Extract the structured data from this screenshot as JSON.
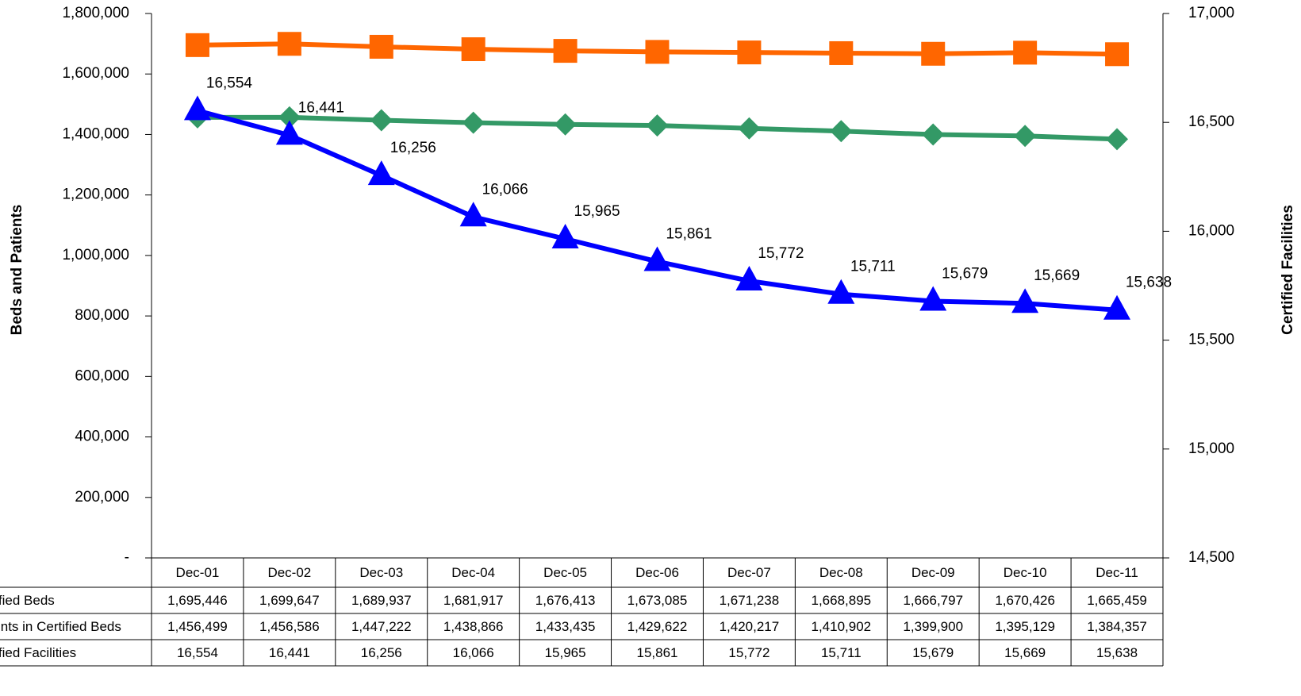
{
  "chart_data": {
    "type": "line",
    "y_label": "Beds and Patients",
    "y2_label": "Certified Facilities",
    "categories": [
      "Dec-01",
      "Dec-02",
      "Dec-03",
      "Dec-04",
      "Dec-05",
      "Dec-06",
      "Dec-07",
      "Dec-08",
      "Dec-09",
      "Dec-10",
      "Dec-11"
    ],
    "series": [
      {
        "name": "Certified Beds",
        "color": "#ff6600",
        "marker": "square",
        "values": [
          1695446,
          1699647,
          1689937,
          1681917,
          1676413,
          1673085,
          1671238,
          1668895,
          1666797,
          1670426,
          1665459
        ],
        "value_labels": [
          "1,695,446",
          "1,699,647",
          "1,689,937",
          "1,681,917",
          "1,676,413",
          "1,673,085",
          "1,671,238",
          "1,668,895",
          "1,666,797",
          "1,670,426",
          "1,665,459"
        ]
      },
      {
        "name": "Patients in Certified Beds",
        "color": "#339966",
        "marker": "diamond",
        "values": [
          1456499,
          1456586,
          1447222,
          1438866,
          1433435,
          1429622,
          1420217,
          1410902,
          1399900,
          1395129,
          1384357
        ],
        "value_labels": [
          "1,456,499",
          "1,456,586",
          "1,447,222",
          "1,438,866",
          "1,433,435",
          "1,429,622",
          "1,420,217",
          "1,410,902",
          "1,399,900",
          "1,395,129",
          "1,384,357"
        ]
      },
      {
        "name": "Certified Facilities",
        "color": "#0000ff",
        "marker": "triangle",
        "axis": "y2",
        "values": [
          16554,
          16441,
          16256,
          16066,
          15965,
          15861,
          15772,
          15711,
          15679,
          15669,
          15638
        ],
        "value_labels": [
          "16,554",
          "16,441",
          "16,256",
          "16,066",
          "15,965",
          "15,861",
          "15,772",
          "15,711",
          "15,679",
          "15,669",
          "15,638"
        ]
      }
    ],
    "ylim": [
      0,
      1800000
    ],
    "yticks": [
      {
        "value": 0,
        "label": "-"
      },
      {
        "value": 200000,
        "label": "200,000"
      },
      {
        "value": 400000,
        "label": "400,000"
      },
      {
        "value": 600000,
        "label": "600,000"
      },
      {
        "value": 800000,
        "label": "800,000"
      },
      {
        "value": 1000000,
        "label": "1,000,000"
      },
      {
        "value": 1200000,
        "label": "1,200,000"
      },
      {
        "value": 1400000,
        "label": "1,400,000"
      },
      {
        "value": 1600000,
        "label": "1,600,000"
      },
      {
        "value": 1800000,
        "label": "1,800,000"
      }
    ],
    "y2lim": [
      14500,
      17000
    ],
    "y2ticks": [
      {
        "value": 14500,
        "label": "14,500"
      },
      {
        "value": 15000,
        "label": "15,000"
      },
      {
        "value": 15500,
        "label": "15,500"
      },
      {
        "value": 16000,
        "label": "16,000"
      },
      {
        "value": 16500,
        "label": "16,500"
      },
      {
        "value": 17000,
        "label": "17,000"
      }
    ],
    "data_table": true
  }
}
